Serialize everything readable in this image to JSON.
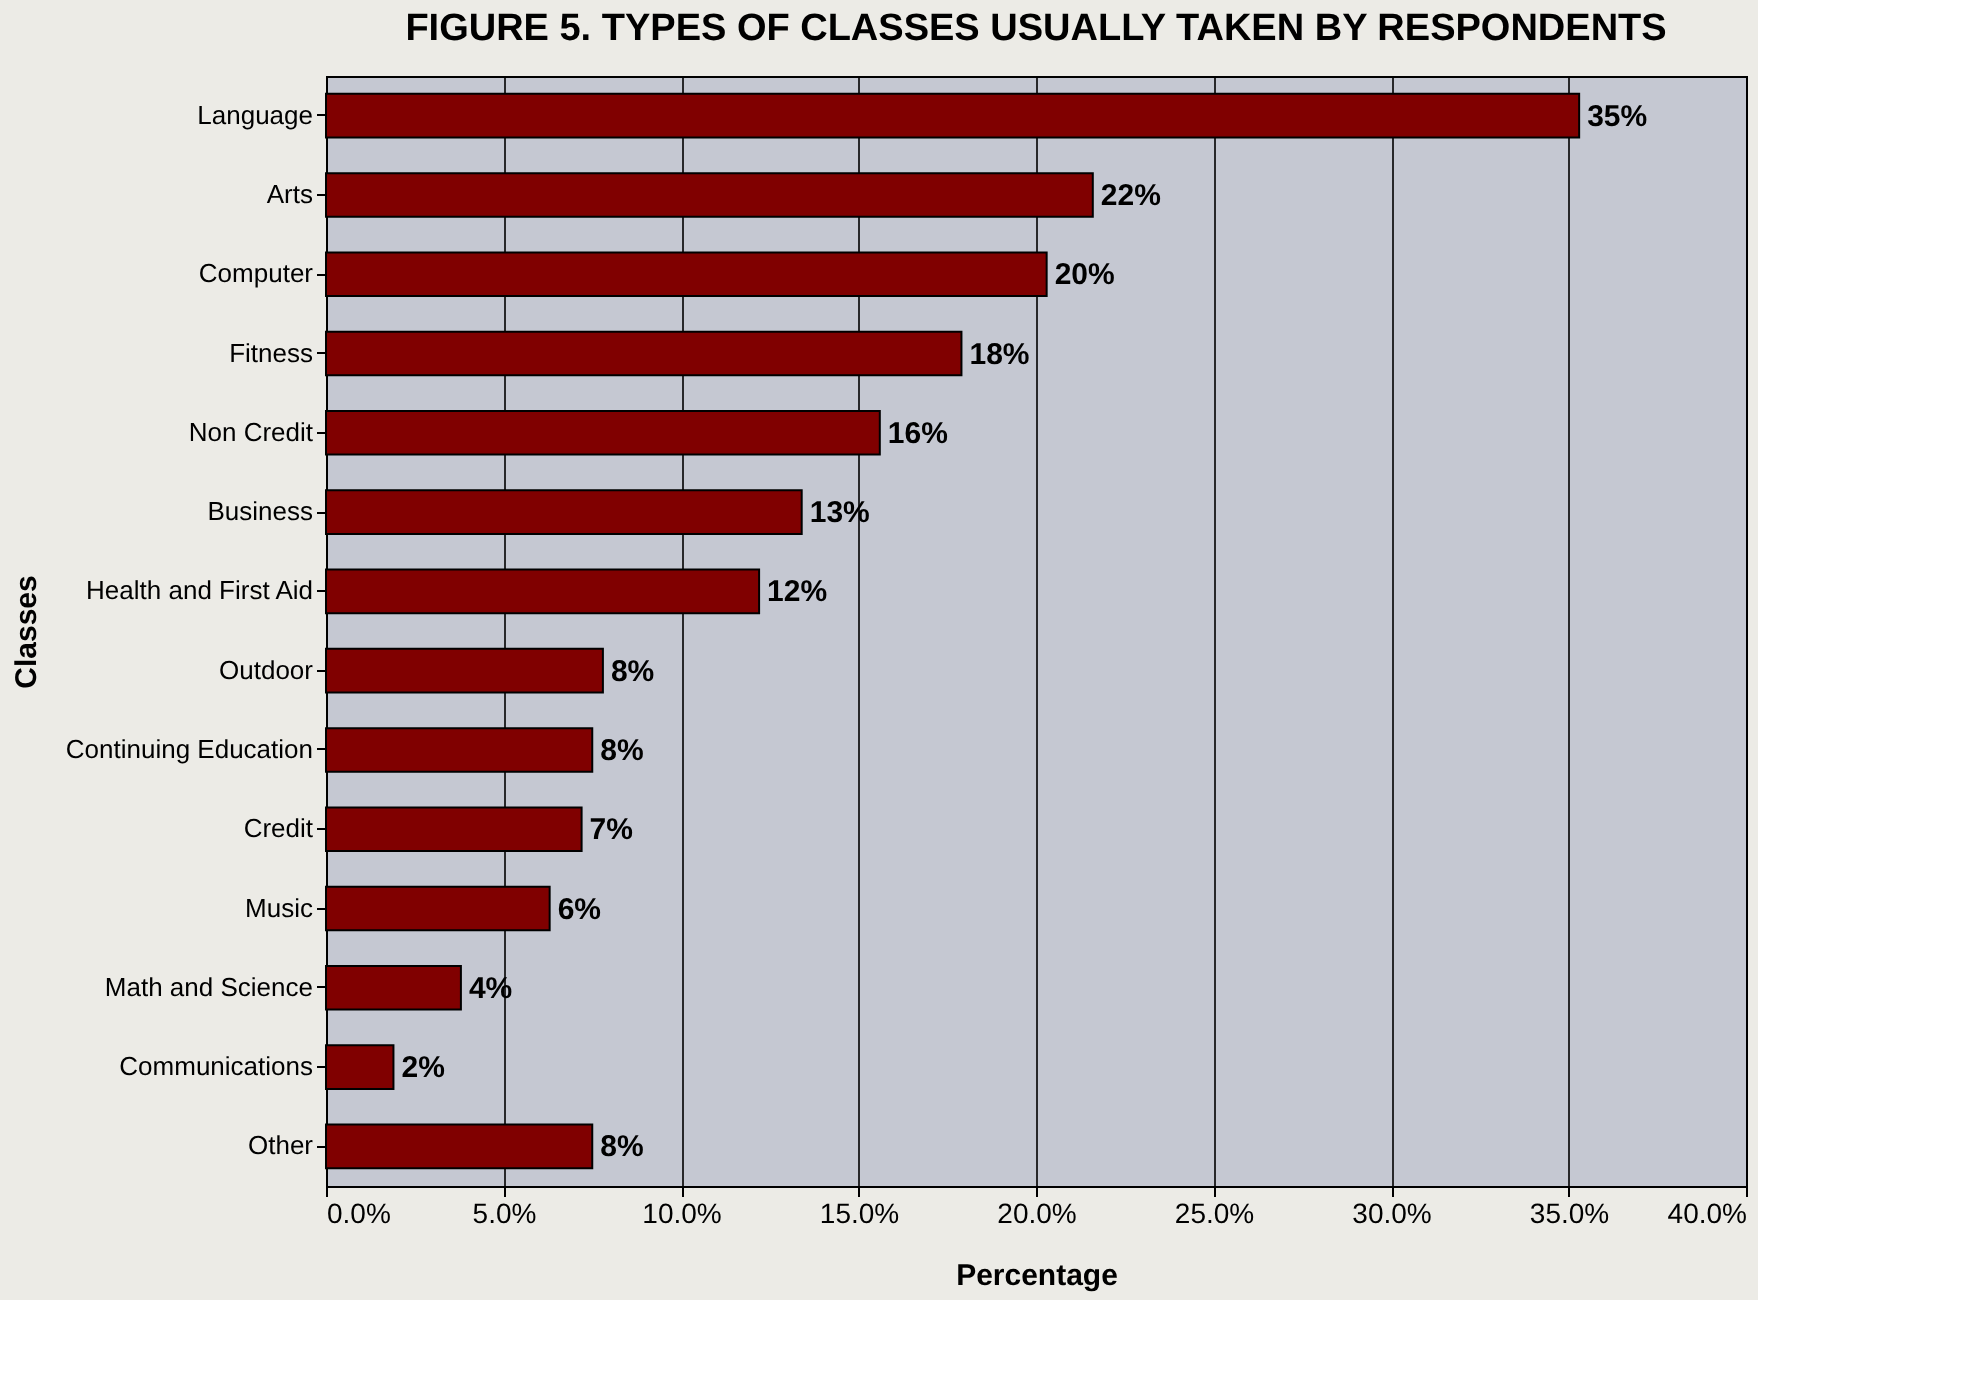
{
  "chart_data": {
    "type": "bar",
    "orientation": "horizontal",
    "title": "FIGURE 5.  TYPES OF CLASSES USUALLY TAKEN BY RESPONDENTS",
    "xlabel": "Percentage",
    "ylabel": "Classes",
    "categories": [
      "Language",
      "Arts",
      "Computer",
      "Fitness",
      "Non Credit",
      "Business",
      "Health and First Aid",
      "Outdoor",
      "Continuing Education",
      "Credit",
      "Music",
      "Math and Science",
      "Communications",
      "Other"
    ],
    "values": [
      35.3,
      21.6,
      20.3,
      17.9,
      15.6,
      13.4,
      12.2,
      7.8,
      7.5,
      7.2,
      6.3,
      3.8,
      1.9,
      7.5
    ],
    "value_labels": [
      "35%",
      "22%",
      "20%",
      "18%",
      "16%",
      "13%",
      "12%",
      "8%",
      "8%",
      "7%",
      "6%",
      "4%",
      "2%",
      "8%"
    ],
    "color": "#800000",
    "xlim": [
      0,
      40
    ],
    "xticks": [
      {
        "value": 0,
        "label": "0.0%"
      },
      {
        "value": 5,
        "label": "5.0%"
      },
      {
        "value": 10,
        "label": "10.0%"
      },
      {
        "value": 15,
        "label": "15.0%"
      },
      {
        "value": 20,
        "label": "20.0%"
      },
      {
        "value": 25,
        "label": "25.0%"
      },
      {
        "value": 30,
        "label": "30.0%"
      },
      {
        "value": 35,
        "label": "35.0%"
      },
      {
        "value": 40,
        "label": "40.0%"
      }
    ],
    "grid": "x"
  }
}
